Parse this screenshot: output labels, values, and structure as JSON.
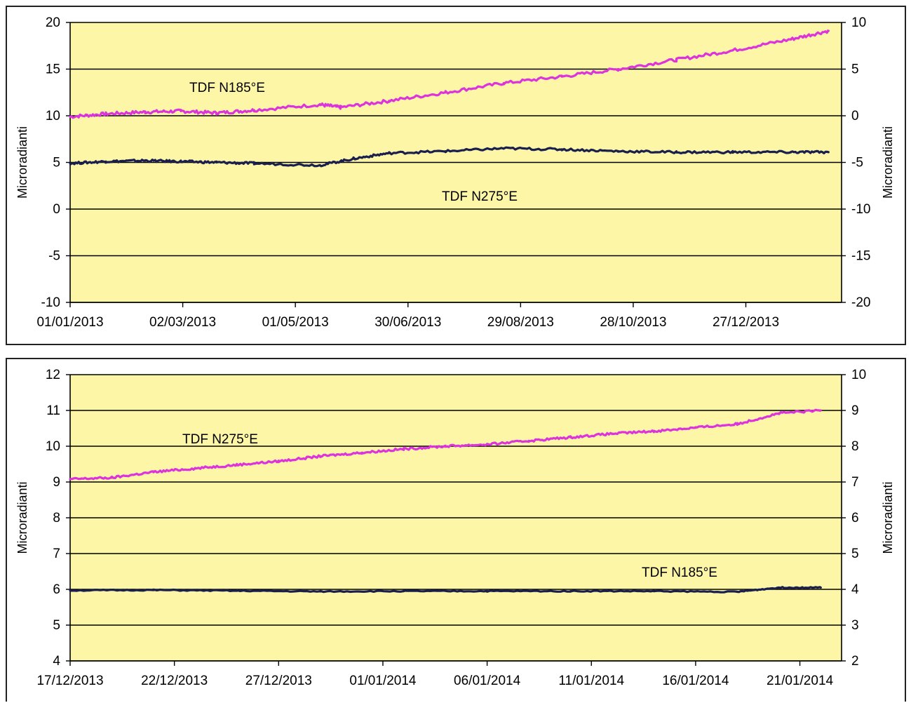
{
  "chart_data": [
    {
      "type": "line",
      "title": "",
      "xlabel": "",
      "ylabel": "Microradianti",
      "ylabel_right": "Microradianti",
      "ylim": [
        -10,
        20
      ],
      "yticks": [
        -10,
        -5,
        0,
        5,
        10,
        15,
        20
      ],
      "ylim_right": [
        -20,
        10
      ],
      "yticks_right": [
        -20,
        -15,
        -10,
        -5,
        0,
        5,
        10
      ],
      "xlim": [
        "01/01/2013",
        "16/02/2014"
      ],
      "xticks": [
        "01/01/2013",
        "02/03/2013",
        "01/05/2013",
        "30/06/2013",
        "29/08/2013",
        "28/10/2013",
        "27/12/2013"
      ],
      "grid": true,
      "background": "#fcf6a6",
      "series": [
        {
          "name": "TDF N185°E",
          "color": "#dd33dd",
          "x": [
            "01/01/2013",
            "20/01/2013",
            "10/02/2013",
            "01/03/2013",
            "20/03/2013",
            "09/04/2013",
            "14/05/2013",
            "25/05/2013",
            "20/06/2013",
            "20/07/2013",
            "20/08/2013",
            "20/09/2013",
            "20/10/2013",
            "20/11/2013",
            "20/12/2013",
            "20/01/2014",
            "09/02/2014"
          ],
          "y": [
            9.9,
            10.2,
            10.4,
            10.5,
            10.3,
            10.6,
            11.2,
            10.9,
            11.6,
            12.5,
            13.5,
            14.2,
            15.0,
            16.0,
            17.0,
            18.2,
            19.1
          ]
        },
        {
          "name": "TDF N275°E",
          "color": "#1a1f4e",
          "x": [
            "01/01/2013",
            "20/01/2013",
            "10/02/2013",
            "01/03/2013",
            "20/03/2013",
            "09/04/2013",
            "14/05/2013",
            "01/06/2013",
            "20/06/2013",
            "20/07/2013",
            "20/08/2013",
            "20/09/2013",
            "20/10/2013",
            "20/11/2013",
            "20/12/2013",
            "20/01/2014",
            "09/02/2014"
          ],
          "y": [
            4.9,
            5.1,
            5.2,
            5.1,
            5.0,
            4.9,
            4.7,
            5.4,
            6.0,
            6.2,
            6.5,
            6.4,
            6.2,
            6.1,
            6.1,
            6.1,
            6.1
          ]
        }
      ],
      "annotations": [
        "TDF N185°E",
        "TDF N275°E"
      ]
    },
    {
      "type": "line",
      "title": "",
      "xlabel": "",
      "ylabel": "Microradianti",
      "ylabel_right": "Microradianti",
      "ylim": [
        4,
        12
      ],
      "yticks": [
        4,
        5,
        6,
        7,
        8,
        9,
        10,
        11,
        12
      ],
      "ylim_right": [
        2,
        10
      ],
      "yticks_right": [
        2,
        3,
        4,
        5,
        6,
        7,
        8,
        9,
        10
      ],
      "xlim": [
        "17/12/2013",
        "23/01/2014"
      ],
      "xticks": [
        "17/12/2013",
        "22/12/2013",
        "27/12/2013",
        "01/01/2014",
        "06/01/2014",
        "11/01/2014",
        "16/01/2014",
        "21/01/2014"
      ],
      "grid": true,
      "background": "#fcf6a6",
      "series": [
        {
          "name": "TDF N275°E",
          "color": "#dd33dd",
          "x": [
            "17/12/2013",
            "19/12/2013",
            "21/12/2013",
            "23/12/2013",
            "25/12/2013",
            "27/12/2013",
            "29/12/2013",
            "31/12/2013",
            "02/01/2014",
            "04/01/2014",
            "06/01/2014",
            "08/01/2014",
            "10/01/2014",
            "12/01/2014",
            "14/01/2014",
            "16/01/2014",
            "18/01/2014",
            "20/01/2014",
            "22/01/2014"
          ],
          "y": [
            9.08,
            9.12,
            9.28,
            9.38,
            9.48,
            9.58,
            9.72,
            9.82,
            9.92,
            10.0,
            10.05,
            10.15,
            10.25,
            10.35,
            10.42,
            10.52,
            10.62,
            10.92,
            11.0
          ]
        },
        {
          "name": "TDF N185°E",
          "color": "#1a1f4e",
          "x": [
            "17/12/2013",
            "21/12/2013",
            "25/12/2013",
            "29/12/2013",
            "02/01/2014",
            "06/01/2014",
            "10/01/2014",
            "14/01/2014",
            "18/01/2014",
            "20/01/2014",
            "22/01/2014"
          ],
          "y": [
            5.97,
            5.98,
            5.96,
            5.94,
            5.95,
            5.95,
            5.95,
            5.95,
            5.93,
            6.05,
            6.05
          ]
        }
      ],
      "annotations": [
        "TDF N275°E",
        "TDF N185°E"
      ]
    }
  ]
}
